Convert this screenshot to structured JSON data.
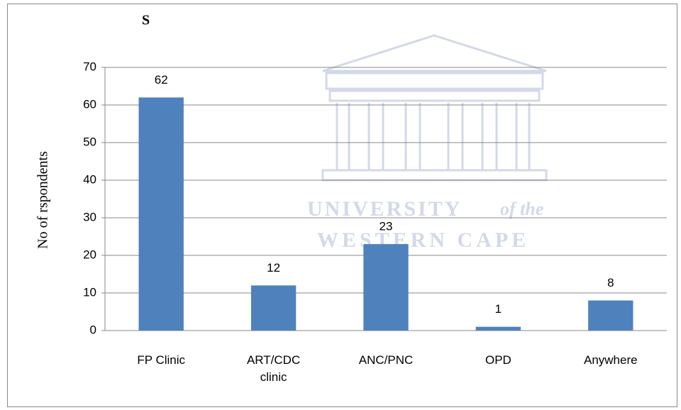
{
  "chart_data": {
    "type": "bar",
    "title": "S",
    "y_label": "No of rspondents",
    "categories": [
      "FP Clinic",
      "ART/CDC clinic",
      "ANC/PNC",
      "OPD",
      "Anywhere"
    ],
    "values": [
      62,
      12,
      23,
      1,
      8
    ],
    "color": "#4f81bd",
    "ylim": [
      0,
      70
    ],
    "yticks": [
      0,
      10,
      20,
      30,
      40,
      50,
      60,
      70
    ],
    "grid": true,
    "watermark": {
      "name": "UNIVERSITY",
      "suffix": "of the",
      "place": "WESTERN CAPE"
    }
  }
}
